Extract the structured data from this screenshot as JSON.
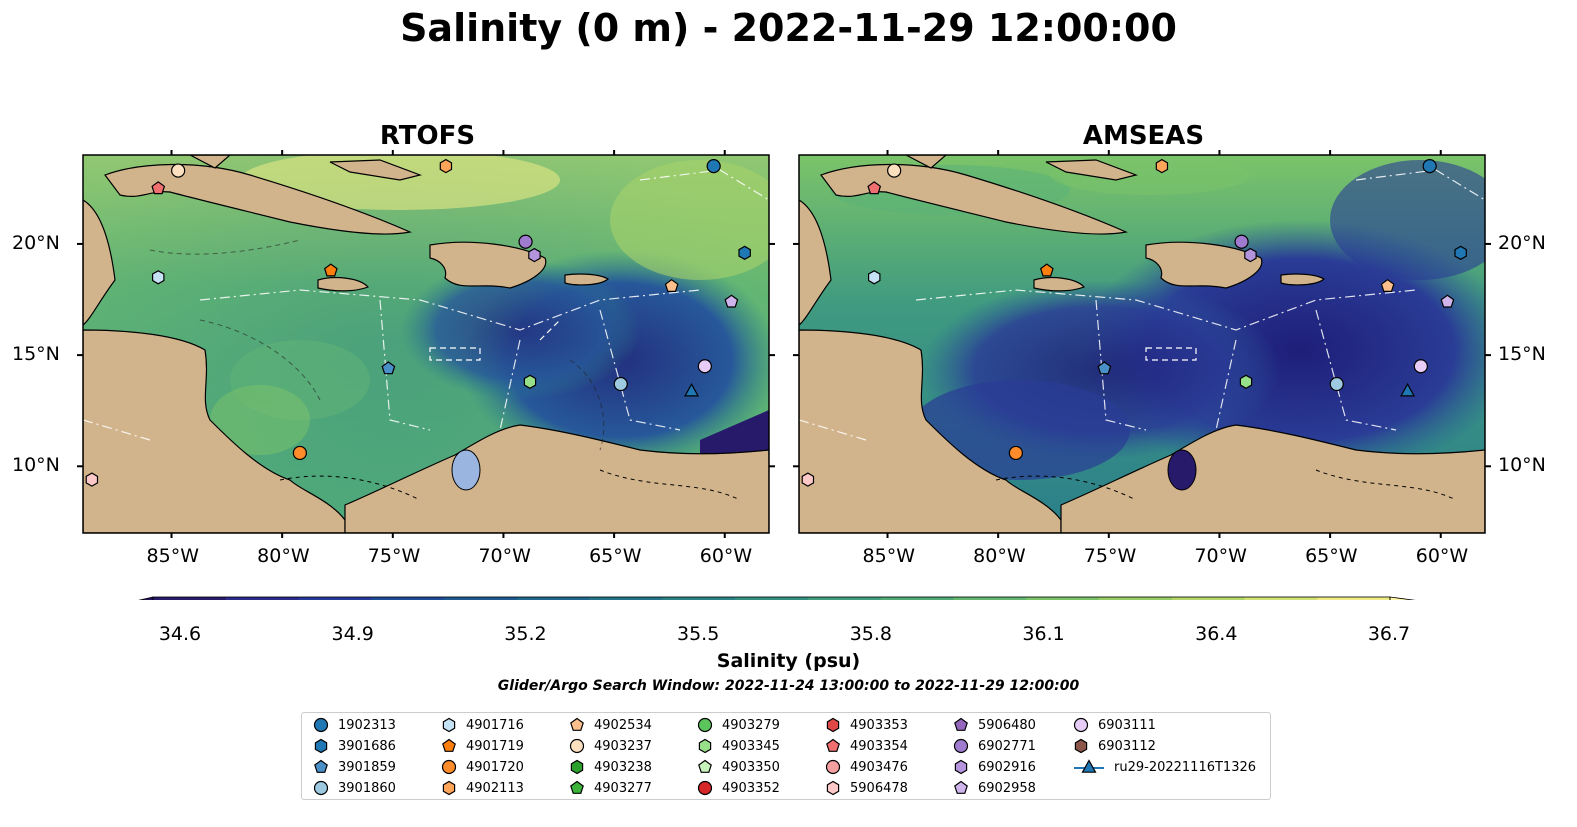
{
  "title": "Salinity (0 m) - 2022-11-29 12:00:00",
  "panels": [
    {
      "title": "RTOFS",
      "land_color": "#D2B48C"
    },
    {
      "title": "AMSEAS",
      "land_color": "#D2B48C"
    }
  ],
  "axes": {
    "x_ticks": [
      "85°W",
      "80°W",
      "75°W",
      "70°W",
      "65°W",
      "60°W"
    ],
    "y_ticks": [
      "20°N",
      "15°N",
      "10°N"
    ]
  },
  "colorbar": {
    "label": "Salinity (psu)",
    "ticks": [
      "34.6",
      "34.9",
      "35.2",
      "35.5",
      "35.8",
      "36.1",
      "36.4",
      "36.7"
    ],
    "colors": [
      "#271a6b",
      "#2a2a8a",
      "#25389a",
      "#1f4a98",
      "#1e5a92",
      "#20688d",
      "#24758a",
      "#2b8387",
      "#349083",
      "#419e7e",
      "#51ab77",
      "#65b870",
      "#7cc469",
      "#97cf66",
      "#b4d96a",
      "#d4e376",
      "#f0ec86"
    ]
  },
  "search_window": "Glider/Argo Search Window: 2022-11-24 13:00:00 to 2022-11-29 12:00:00",
  "legend": [
    {
      "label": "1902313",
      "marker": "circle",
      "color": "#1f77b4"
    },
    {
      "label": "3901686",
      "marker": "hexagon",
      "color": "#1f77b4"
    },
    {
      "label": "3901859",
      "marker": "pentagon",
      "color": "#4a90c8"
    },
    {
      "label": "3901860",
      "marker": "circle",
      "color": "#9ecae1"
    },
    {
      "label": "4901716",
      "marker": "hexagon",
      "color": "#c6e2f5"
    },
    {
      "label": "4901719",
      "marker": "pentagon",
      "color": "#ff7f0e"
    },
    {
      "label": "4901720",
      "marker": "circle",
      "color": "#ff8c2a"
    },
    {
      "label": "4902113",
      "marker": "hexagon",
      "color": "#ffa55a"
    },
    {
      "label": "4902534",
      "marker": "pentagon",
      "color": "#fdc08c"
    },
    {
      "label": "4903237",
      "marker": "circle",
      "color": "#fde0c0"
    },
    {
      "label": "4903238",
      "marker": "hexagon",
      "color": "#2ca02c"
    },
    {
      "label": "4903277",
      "marker": "pentagon",
      "color": "#3cb43c"
    },
    {
      "label": "4903279",
      "marker": "circle",
      "color": "#5cc45c"
    },
    {
      "label": "4903345",
      "marker": "hexagon",
      "color": "#98df8a"
    },
    {
      "label": "4903350",
      "marker": "pentagon",
      "color": "#c8f2bc"
    },
    {
      "label": "4903352",
      "marker": "circle",
      "color": "#d62728"
    },
    {
      "label": "4903353",
      "marker": "hexagon",
      "color": "#e04848"
    },
    {
      "label": "4903354",
      "marker": "pentagon",
      "color": "#f07070"
    },
    {
      "label": "4903476",
      "marker": "circle",
      "color": "#f4a0a0"
    },
    {
      "label": "5906478",
      "marker": "hexagon",
      "color": "#fcc8c8"
    },
    {
      "label": "5906480",
      "marker": "pentagon",
      "color": "#9467bd"
    },
    {
      "label": "6902771",
      "marker": "circle",
      "color": "#a07cd0"
    },
    {
      "label": "6902916",
      "marker": "hexagon",
      "color": "#b494dc"
    },
    {
      "label": "6902958",
      "marker": "pentagon",
      "color": "#d0b4ec"
    },
    {
      "label": "6903111",
      "marker": "circle",
      "color": "#e8ccf8"
    },
    {
      "label": "6903112",
      "marker": "hexagon",
      "color": "#8c564b"
    },
    {
      "label": "ru29-20221116T1326",
      "marker": "triangle-line",
      "color": "#1f77b4"
    }
  ],
  "map_extent": {
    "lon": [
      -89,
      -58
    ],
    "lat": [
      7,
      24
    ]
  },
  "observations": [
    {
      "label": "1902313",
      "lon": -60.5,
      "lat": 23.5
    },
    {
      "label": "3901686",
      "lon": -59.1,
      "lat": 19.6
    },
    {
      "label": "3901859",
      "lon": -75.2,
      "lat": 14.4
    },
    {
      "label": "3901860",
      "lon": -64.7,
      "lat": 13.7
    },
    {
      "label": "4901716",
      "lon": -85.6,
      "lat": 18.5
    },
    {
      "label": "4901719",
      "lon": -77.8,
      "lat": 18.8
    },
    {
      "label": "4901720",
      "lon": -79.2,
      "lat": 10.6
    },
    {
      "label": "4902113",
      "lon": -72.6,
      "lat": 23.5
    },
    {
      "label": "4902534",
      "lon": -62.4,
      "lat": 18.1
    },
    {
      "label": "4903237",
      "lon": -84.7,
      "lat": 23.3
    },
    {
      "label": "4903345",
      "lon": -68.8,
      "lat": 13.8
    },
    {
      "label": "4903354",
      "lon": -85.6,
      "lat": 22.5
    },
    {
      "label": "5906478",
      "lon": -88.6,
      "lat": 9.4
    },
    {
      "label": "6902771",
      "lon": -69.0,
      "lat": 20.1
    },
    {
      "label": "6902916",
      "lon": -68.6,
      "lat": 19.5
    },
    {
      "label": "6902958",
      "lon": -59.7,
      "lat": 17.4
    },
    {
      "label": "6903111",
      "lon": -60.9,
      "lat": 14.5
    },
    {
      "label": "ru29-20221116T1326",
      "lon": -61.5,
      "lat": 13.4
    }
  ]
}
